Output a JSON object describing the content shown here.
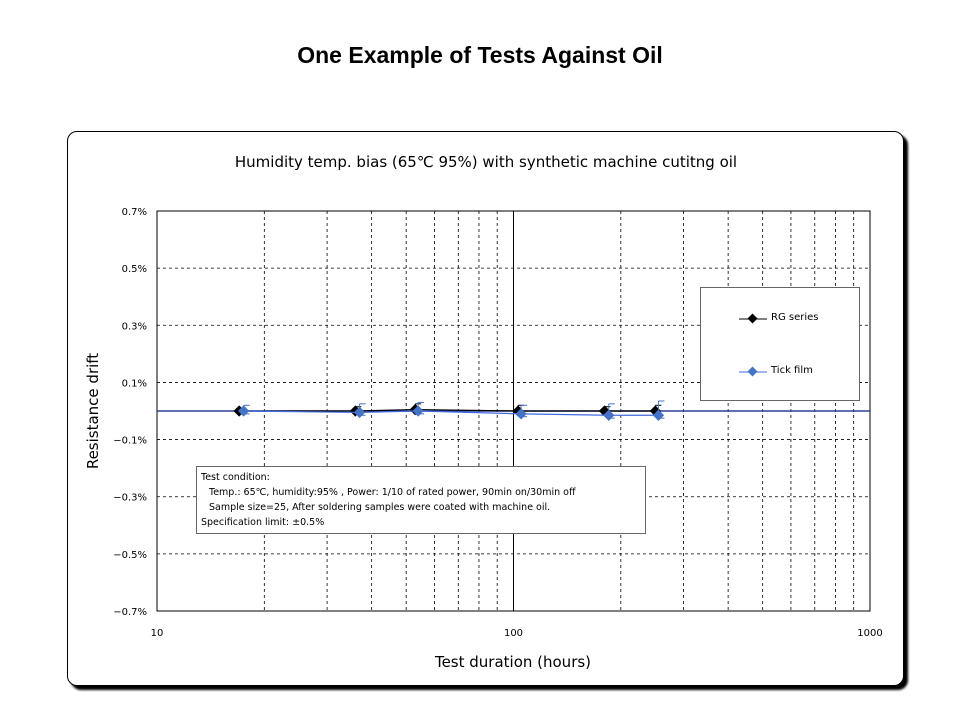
{
  "slide": {
    "title": "One Example of Tests Against Oil"
  },
  "chart_data": {
    "type": "line",
    "title": "Humidity temp. bias (65℃ 95%) with synthetic machine cutitng oil",
    "xlabel": "Test duration (hours)",
    "ylabel": "Resistance drift",
    "x_scale": "log",
    "xlim": [
      10,
      1000
    ],
    "ylim": [
      -0.7,
      0.7
    ],
    "x_ticks": [
      {
        "value": 10,
        "label": "10"
      },
      {
        "value": 100,
        "label": "100"
      },
      {
        "value": 1000,
        "label": "1000"
      }
    ],
    "y_ticks": [
      {
        "value": 0.7,
        "label": "0.7%"
      },
      {
        "value": 0.5,
        "label": "0.5%"
      },
      {
        "value": 0.3,
        "label": "0.3%"
      },
      {
        "value": 0.1,
        "label": "0.1%"
      },
      {
        "value": -0.1,
        "label": "−0.1%"
      },
      {
        "value": -0.3,
        "label": "−0.3%"
      },
      {
        "value": -0.5,
        "label": "−0.5%"
      },
      {
        "value": -0.7,
        "label": "−0.7%"
      }
    ],
    "grid": true,
    "legend_position": "right",
    "series": [
      {
        "name": "RG series",
        "color": "#000000",
        "marker_color": "#000000",
        "x": [
          17,
          36,
          53,
          103,
          180,
          250
        ],
        "y": [
          0.0,
          0.0,
          0.005,
          0.0,
          0.0,
          0.0
        ],
        "err_plus": [
          0.01,
          0.015,
          0.02,
          0.02,
          0.015,
          0.02
        ]
      },
      {
        "name": "Tick film",
        "color": "#4169e1",
        "marker_color": "#4472c4",
        "x": [
          17.5,
          37,
          54,
          105,
          185,
          255
        ],
        "y": [
          0.0,
          -0.005,
          0.0,
          -0.01,
          -0.015,
          -0.015
        ],
        "err_plus": [
          0.02,
          0.03,
          0.03,
          0.03,
          0.04,
          0.05
        ],
        "err_minus": [
          0.01,
          0.01,
          0.01,
          0.01,
          0.01,
          0.01
        ]
      }
    ],
    "annotation": {
      "lines": [
        "Test condition:",
        "Temp.: 65℃, humidity:95% ,  Power: 1/10 of rated power, 90min on/30min off",
        "Sample size=25, After soldering samples were coated with machine oil.",
        "Specification limit: ±0.5%"
      ]
    }
  }
}
